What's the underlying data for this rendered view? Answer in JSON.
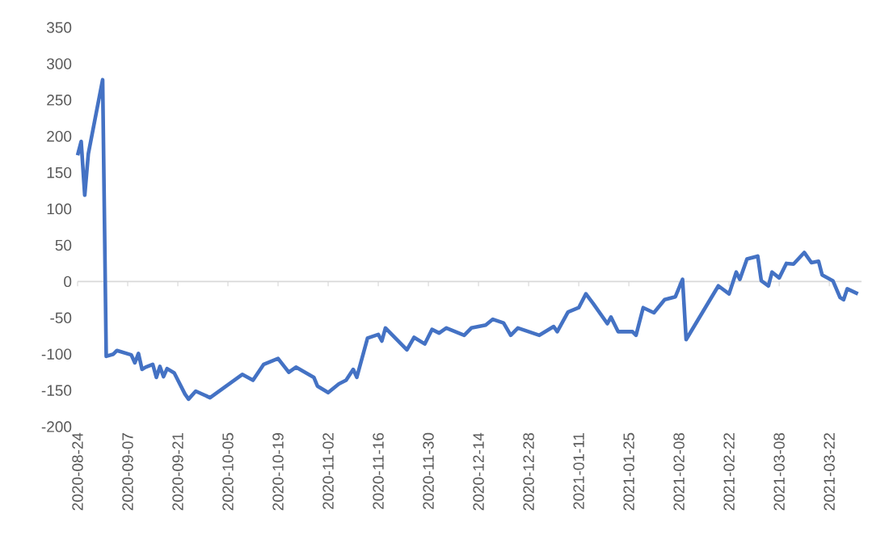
{
  "chart_data": {
    "type": "line",
    "x": [
      "2020-08-24",
      "2020-08-25",
      "2020-08-26",
      "2020-08-27",
      "2020-08-31",
      "2020-09-01",
      "2020-09-03",
      "2020-09-04",
      "2020-09-08",
      "2020-09-09",
      "2020-09-10",
      "2020-09-11",
      "2020-09-12",
      "2020-09-14",
      "2020-09-15",
      "2020-09-16",
      "2020-09-17",
      "2020-09-18",
      "2020-09-20",
      "2020-09-23",
      "2020-09-24",
      "2020-09-26",
      "2020-09-30",
      "2020-10-09",
      "2020-10-12",
      "2020-10-15",
      "2020-10-19",
      "2020-10-22",
      "2020-10-24",
      "2020-10-29",
      "2020-10-30",
      "2020-11-02",
      "2020-11-05",
      "2020-11-07",
      "2020-11-09",
      "2020-11-10",
      "2020-11-13",
      "2020-11-16",
      "2020-11-17",
      "2020-11-18",
      "2020-11-24",
      "2020-11-26",
      "2020-11-29",
      "2020-12-01",
      "2020-12-03",
      "2020-12-05",
      "2020-12-10",
      "2020-12-12",
      "2020-12-16",
      "2020-12-18",
      "2020-12-21",
      "2020-12-23",
      "2020-12-25",
      "2020-12-31",
      "2021-01-04",
      "2021-01-05",
      "2021-01-08",
      "2021-01-11",
      "2021-01-13",
      "2021-01-15",
      "2021-01-19",
      "2021-01-20",
      "2021-01-22",
      "2021-01-26",
      "2021-01-27",
      "2021-01-29",
      "2021-02-01",
      "2021-02-04",
      "2021-02-07",
      "2021-02-09",
      "2021-02-10",
      "2021-02-19",
      "2021-02-22",
      "2021-02-24",
      "2021-02-25",
      "2021-02-27",
      "2021-03-02",
      "2021-03-03",
      "2021-03-05",
      "2021-03-06",
      "2021-03-08",
      "2021-03-10",
      "2021-03-12",
      "2021-03-15",
      "2021-03-17",
      "2021-03-19",
      "2021-03-20",
      "2021-03-23",
      "2021-03-25",
      "2021-03-26",
      "2021-03-27",
      "2021-03-30"
    ],
    "series": [
      {
        "color": "#4472c4",
        "values": [
          174,
          193,
          119,
          176,
          278,
          -103,
          -100,
          -95,
          -101,
          -112,
          -99,
          -121,
          -118,
          -114,
          -132,
          -117,
          -131,
          -120,
          -126,
          -155,
          -162,
          -151,
          -160,
          -128,
          -136,
          -114,
          -106,
          -125,
          -118,
          -132,
          -144,
          -153,
          -141,
          -136,
          -121,
          -132,
          -78,
          -73,
          -82,
          -64,
          -94,
          -77,
          -86,
          -66,
          -71,
          -64,
          -74,
          -64,
          -60,
          -52,
          -57,
          -74,
          -64,
          -74,
          -62,
          -69,
          -42,
          -36,
          -17,
          -30,
          -58,
          -49,
          -69,
          -69,
          -74,
          -36,
          -43,
          -25,
          -21,
          3,
          -80,
          -6,
          -17,
          13,
          3,
          31,
          35,
          1,
          -6,
          13,
          5,
          25,
          24,
          40,
          26,
          28,
          9,
          1,
          -22,
          -25,
          -10,
          -17
        ]
      }
    ],
    "xlim": [
      "2020-08-24",
      "2021-03-31"
    ],
    "xticks": [
      "2020-08-24",
      "2020-09-07",
      "2020-09-21",
      "2020-10-05",
      "2020-10-19",
      "2020-11-02",
      "2020-11-16",
      "2020-11-30",
      "2020-12-14",
      "2020-12-28",
      "2021-01-11",
      "2021-01-25",
      "2021-02-08",
      "2021-02-22",
      "2021-03-08",
      "2021-03-22"
    ],
    "ylim": [
      -200,
      350
    ],
    "yticks": [
      -200,
      -150,
      -100,
      -50,
      0,
      50,
      100,
      150,
      200,
      250,
      300,
      350
    ],
    "marker": "none",
    "line_style": "solid"
  }
}
